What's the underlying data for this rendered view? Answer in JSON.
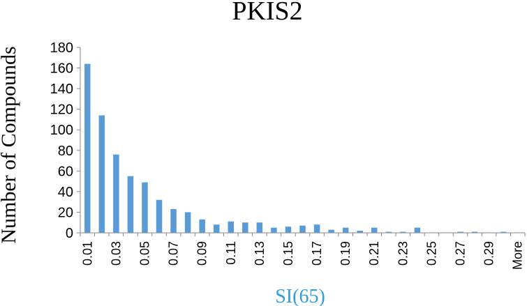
{
  "chart_data": {
    "type": "bar",
    "title": "PKIS2",
    "xlabel": "SI(65)",
    "ylabel": "Number of Compounds",
    "ylim": [
      0,
      180
    ],
    "yticks": [
      0,
      20,
      40,
      60,
      80,
      100,
      120,
      140,
      160,
      180
    ],
    "categories": [
      "0.01",
      "0.02",
      "0.03",
      "0.04",
      "0.05",
      "0.06",
      "0.07",
      "0.08",
      "0.09",
      "0.1",
      "0.11",
      "0.12",
      "0.13",
      "0.14",
      "0.15",
      "0.16",
      "0.17",
      "0.18",
      "0.19",
      "0.2",
      "0.21",
      "0.22",
      "0.23",
      "0.24",
      "0.25",
      "0.26",
      "0.27",
      "0.28",
      "0.29",
      "0.3",
      "More"
    ],
    "tick_labels": [
      "0.01",
      "",
      "0.03",
      "",
      "0.05",
      "",
      "0.07",
      "",
      "0.09",
      "",
      "0.11",
      "",
      "0.13",
      "",
      "0.15",
      "",
      "0.17",
      "",
      "0.19",
      "",
      "0.21",
      "",
      "0.23",
      "",
      "0.25",
      "",
      "0.27",
      "",
      "0.29",
      "",
      "More"
    ],
    "values": [
      164,
      114,
      76,
      55,
      49,
      32,
      23,
      20,
      13,
      8,
      11,
      10,
      10,
      5,
      6,
      7,
      8,
      3,
      5,
      2,
      5,
      1,
      1,
      5,
      0,
      0,
      1,
      1,
      0,
      1,
      0
    ],
    "grid": false,
    "bar_color": "#5b9bd5",
    "xlabel_color": "#2e9fe0"
  }
}
